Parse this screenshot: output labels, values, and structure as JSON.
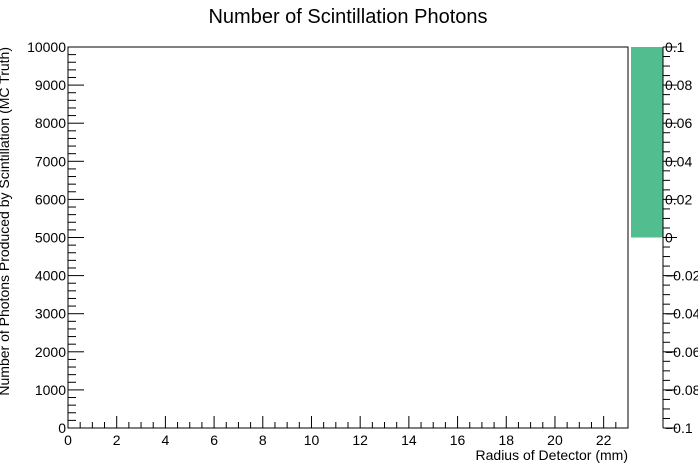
{
  "chart_data": {
    "type": "heatmap",
    "title": "Number of Scintillation Photons",
    "xlabel": "Radius of Detector (mm)",
    "ylabel": "Number of Photons Produced by Scintillation (MC Truth)",
    "xlim": [
      0,
      23
    ],
    "ylim": [
      0,
      10000
    ],
    "x_ticks": [
      0,
      2,
      4,
      6,
      8,
      10,
      12,
      14,
      16,
      18,
      20,
      22
    ],
    "y_ticks": [
      0,
      1000,
      2000,
      3000,
      4000,
      5000,
      6000,
      7000,
      8000,
      9000,
      10000
    ],
    "z_range": [
      -0.1,
      0.1
    ],
    "z_ticks": [
      "−0.1",
      "−0.08",
      "−0.06",
      "−0.04",
      "−0.02",
      "0",
      "0.02",
      "0.04",
      "0.06",
      "0.08",
      "0.1"
    ],
    "z_filled_range": [
      0,
      0.1
    ],
    "palette_color": "#52bd8f",
    "values": [],
    "grid": false
  }
}
